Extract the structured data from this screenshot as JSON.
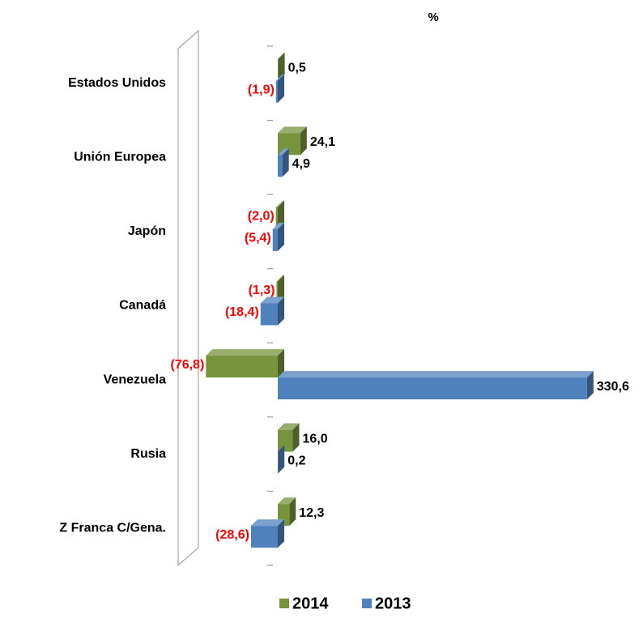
{
  "chart_data": {
    "type": "bar",
    "orientation": "horizontal",
    "title": "%",
    "categories": [
      "Estados Unidos",
      "Unión Europea",
      "Japón",
      "Canadá",
      "Venezuela",
      "Rusia",
      "Z Franca C/Gena."
    ],
    "series": [
      {
        "name": "2014",
        "color": "#77933c",
        "values": [
          0.5,
          24.1,
          -2.0,
          -1.3,
          -76.8,
          16.0,
          12.3
        ],
        "value_labels": [
          "0,5",
          "24,1",
          "(2,0)",
          "(1,3)",
          "(76,8)",
          "16,0",
          "12,3"
        ]
      },
      {
        "name": "2013",
        "color": "#4f81bd",
        "values": [
          -1.9,
          4.9,
          -5.4,
          -18.4,
          330.6,
          0.2,
          -28.6
        ],
        "value_labels": [
          "(1,9)",
          "4,9",
          "(5,4)",
          "(18,4)",
          "330,6",
          "0,2",
          "(28,6)"
        ]
      }
    ],
    "xlim": [
      -100,
      340
    ],
    "legend": "bottom"
  }
}
